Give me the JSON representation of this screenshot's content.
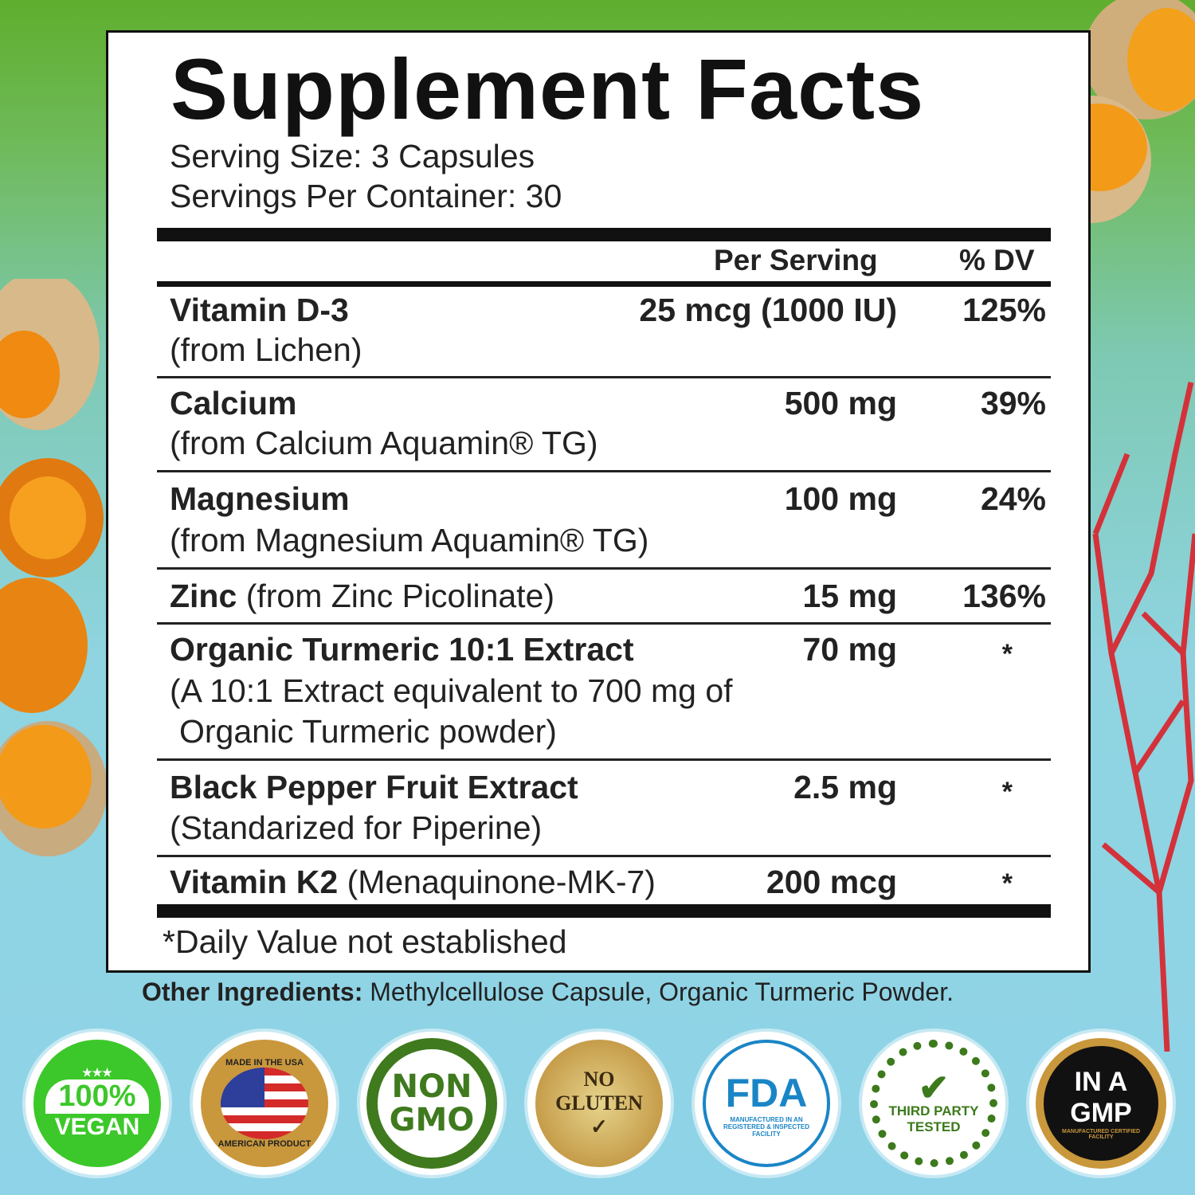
{
  "title": "Supplement Facts",
  "serving_size": "Serving Size: 3 Capsules",
  "servings_per_container": "Servings Per Container: 30",
  "headers": {
    "per_serving": "Per Serving",
    "dv": "% DV"
  },
  "rows": [
    {
      "name": "Vitamin D-3",
      "sub": "(from Lichen)",
      "amount": "25 mcg (1000 IU)",
      "dv": "125%"
    },
    {
      "name": "Calcium",
      "sub": "(from Calcium Aquamin® TG)",
      "amount": "500 mg",
      "dv": "39%"
    },
    {
      "name": "Magnesium",
      "sub": "(from Magnesium Aquamin® TG)",
      "amount": "100 mg",
      "dv": "24%"
    },
    {
      "name": "Zinc",
      "sub": "(from Zinc Picolinate)",
      "amount": "15 mg",
      "dv": "136%"
    },
    {
      "name": "Organic Turmeric 10:1 Extract",
      "sub": "(A 10:1 Extract equivalent to 700 mg of",
      "sub2": "Organic Turmeric powder)",
      "amount": "70 mg",
      "dv": "*"
    },
    {
      "name": "Black Pepper Fruit Extract",
      "sub": "(Standarized for Piperine)",
      "amount": "2.5 mg",
      "dv": "*"
    },
    {
      "name": "Vitamin K2",
      "sub": "(Menaquinone-MK-7)",
      "amount": "200 mcg",
      "dv": "*"
    }
  ],
  "footnote": "*Daily Value not established",
  "other_ingredients": {
    "label": "Other Ingredients:",
    "value": " Methylcellulose Capsule, Organic Turmeric Powder."
  },
  "badges": [
    {
      "icon": "vegan-badge",
      "line1": "100%",
      "line2": "VEGAN",
      "color": "#3cc82a"
    },
    {
      "icon": "usa-badge",
      "line1": "MADE IN THE USA",
      "line2": "AMERICAN PRODUCT",
      "color": "#b8862e"
    },
    {
      "icon": "non-gmo-badge",
      "line1": "NON",
      "line2": "GMO",
      "color": "#3f7a1e"
    },
    {
      "icon": "no-gluten-badge",
      "line1": "NO",
      "line2": "GLUTEN",
      "color": "#c49a3a"
    },
    {
      "icon": "fda-badge",
      "line1": "FDA",
      "line2": "MANUFACTURED IN AN REGISTERED & INSPECTED FACILITY",
      "color": "#1a85c6"
    },
    {
      "icon": "third-party-tested-badge",
      "line1": "THIRD PARTY",
      "line2": "TESTED",
      "color": "#3c7a1c"
    },
    {
      "icon": "gmp-badge",
      "line1": "IN A GMP",
      "line2": "MANUFACTURED CERTIFIED FACILITY",
      "color": "#111111"
    }
  ]
}
